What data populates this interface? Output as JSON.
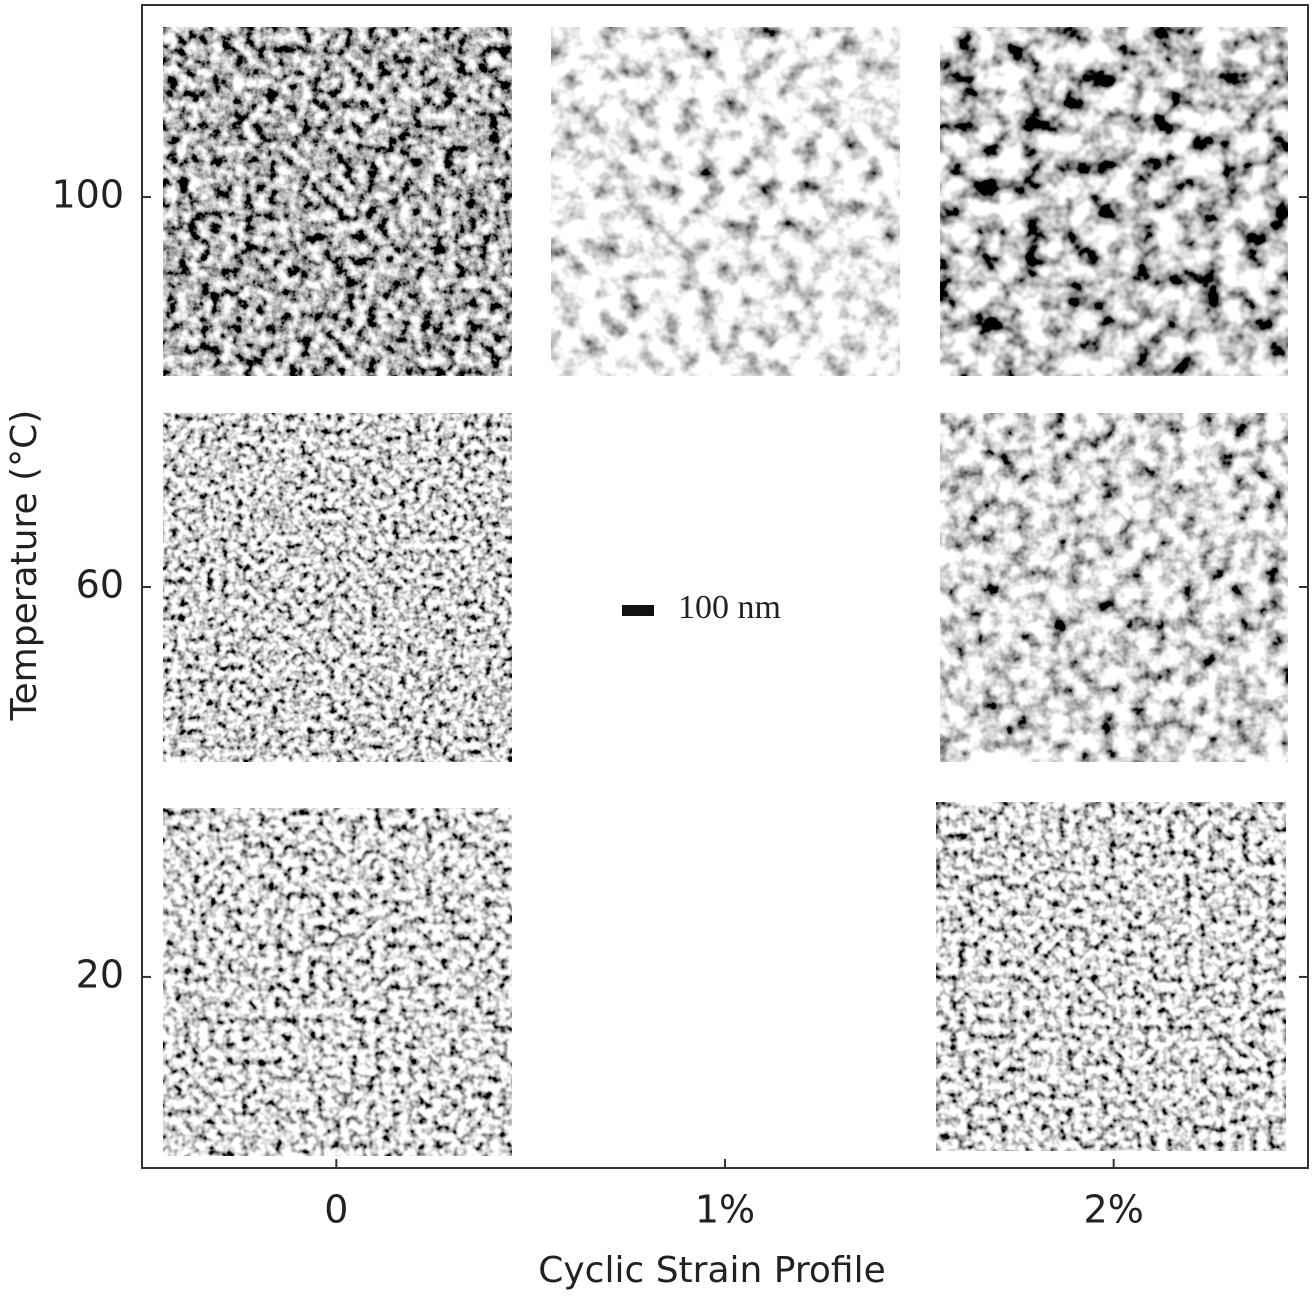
{
  "chart_data": {
    "type": "image-grid",
    "xlabel": "Cyclic Strain Profile",
    "ylabel": "Temperature (°C)",
    "categories": [
      "0",
      "1%",
      "2%"
    ],
    "ylim": [
      0.4,
      119.7
    ],
    "yticks": [
      20,
      60,
      100
    ],
    "annotation": "100 nm"
  }
}
